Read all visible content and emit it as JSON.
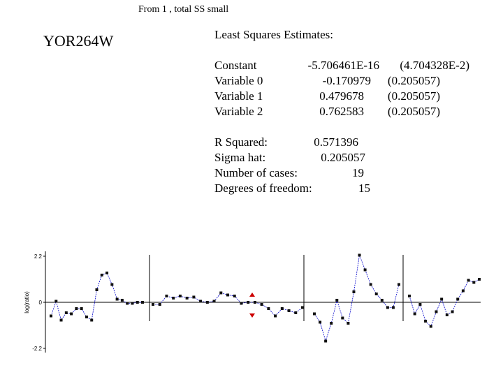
{
  "header": {
    "top_title": "From 1 , total SS small",
    "gene": "YOR264W",
    "lse_heading": "Least Squares Estimates:"
  },
  "estimates": [
    {
      "name": "Constant",
      "estimate": "-5.706461E-16",
      "se": "(4.704328E-2)"
    },
    {
      "name": "Variable 0",
      "estimate": "-0.170979",
      "se": "(0.205057)"
    },
    {
      "name": "Variable 1",
      "estimate": "0.479678",
      "se": "(0.205057)"
    },
    {
      "name": "Variable 2",
      "estimate": "0.762583",
      "se": "(0.205057)"
    }
  ],
  "stats": [
    {
      "label": "R Squared:",
      "value": "0.571396"
    },
    {
      "label": "Sigma hat:",
      "value": "0.205057"
    },
    {
      "label": "Number of cases:",
      "value": "19"
    },
    {
      "label": "Degrees of freedom:",
      "value": "15"
    }
  ],
  "chart_data": {
    "type": "line",
    "ylabel": "log(ratio)",
    "yticks": [
      "2.2",
      "0",
      "-2.2"
    ],
    "ylim": [
      -2.2,
      2.2
    ],
    "grid": false,
    "series": [
      {
        "values": [
          -0.65,
          0.05,
          -0.85,
          -0.5,
          -0.55,
          -0.3,
          -0.3,
          -0.7,
          -0.85,
          0.6,
          1.3,
          1.4,
          0.85,
          0.15,
          0.1,
          -0.05,
          -0.05,
          0.0,
          0.0
        ],
        "color": "#0000cc"
      },
      {
        "values": [
          -0.1,
          -0.1,
          0.3,
          0.2,
          0.3,
          0.2,
          0.25,
          0.05,
          0.0,
          0.05,
          0.45,
          0.35,
          0.3,
          -0.05,
          0.0,
          0.0,
          -0.1,
          -0.3,
          -0.65,
          -0.3,
          -0.4,
          -0.5,
          -0.25
        ],
        "color": "#0000cc"
      },
      {
        "values": [
          -0.55,
          -0.95,
          -1.85,
          -1.0,
          0.1,
          -0.75,
          -1.0,
          0.5,
          2.25,
          1.55,
          0.85,
          0.4,
          0.1,
          -0.25,
          -0.25,
          0.85
        ],
        "color": "#0000cc"
      },
      {
        "values": [
          0.3,
          -0.55,
          -0.1,
          -0.9,
          -1.15,
          -0.45,
          0.15,
          -0.6,
          -0.45,
          0.15,
          0.55,
          1.05,
          0.95,
          1.1
        ],
        "color": "#0000cc"
      }
    ],
    "highlight_color": "#cc0000"
  }
}
